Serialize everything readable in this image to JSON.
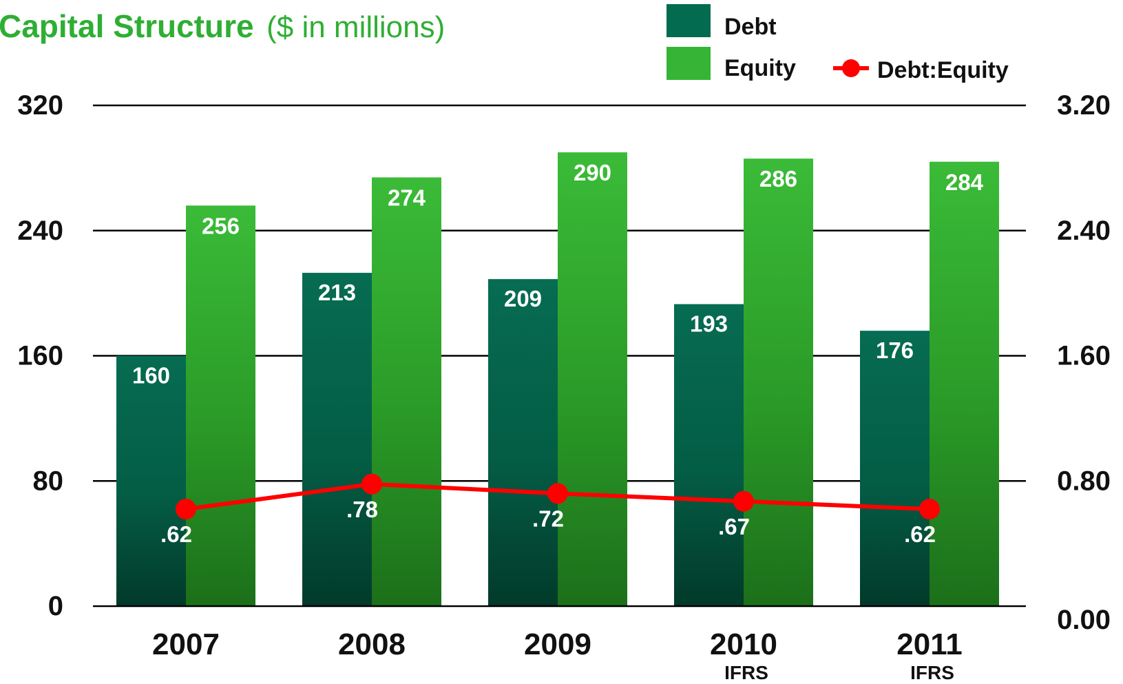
{
  "chart_data": {
    "type": "bar",
    "title": "Capital Structure",
    "subtitle": "($ in millions)",
    "categories": [
      "2007",
      "2008",
      "2009",
      "2010",
      "2011"
    ],
    "category_sublabels": [
      "",
      "",
      "",
      "IFRS",
      "IFRS"
    ],
    "series": [
      {
        "name": "Debt",
        "type": "bar",
        "axis": "left",
        "color": "#006a50",
        "values": [
          160,
          213,
          209,
          193,
          176
        ],
        "labels": [
          "160",
          "213",
          "209",
          "193",
          "176"
        ]
      },
      {
        "name": "Equity",
        "type": "bar",
        "axis": "left",
        "color": "#36b436",
        "values": [
          256,
          274,
          290,
          286,
          284
        ],
        "labels": [
          "256",
          "274",
          "290",
          "286",
          "284"
        ]
      },
      {
        "name": "Debt:Equity",
        "type": "line",
        "axis": "right",
        "color": "#ff0000",
        "values": [
          0.62,
          0.78,
          0.72,
          0.67,
          0.62
        ],
        "labels": [
          ".62",
          ".78",
          ".72",
          ".67",
          ".62"
        ]
      }
    ],
    "y_left": {
      "range": [
        0,
        320
      ],
      "ticks": [
        0,
        80,
        160,
        240,
        320
      ],
      "tick_labels": [
        "0",
        "80",
        "160",
        "240",
        "320"
      ]
    },
    "y_right": {
      "range": [
        0,
        3.2
      ],
      "ticks": [
        0,
        0.8,
        1.6,
        2.4,
        3.2
      ],
      "tick_labels": [
        "0.00",
        "0.80",
        "1.60",
        "2.40",
        "3.20"
      ]
    },
    "grid": true,
    "legend_position": "top-right"
  }
}
